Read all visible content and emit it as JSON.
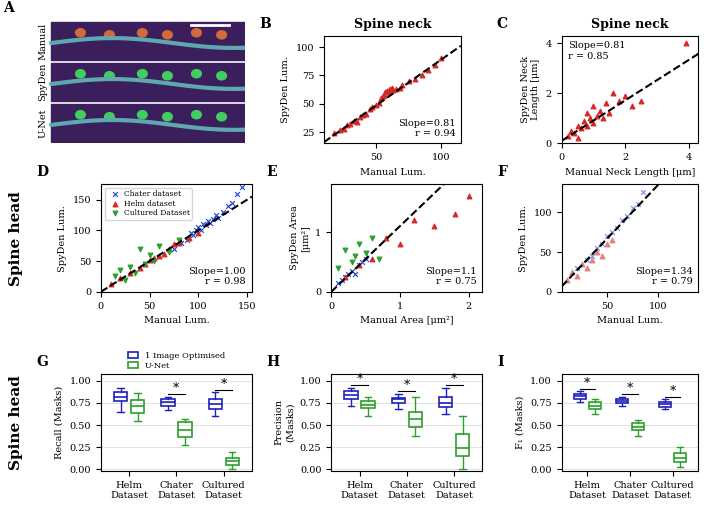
{
  "chart_data": [
    {
      "type": "image",
      "panel": "A",
      "row_labels": [
        "Manual",
        "SpyDen",
        "U-Net"
      ]
    },
    {
      "type": "scatter",
      "panel": "B",
      "title": "Spine neck",
      "x_label": "Manual Lum.",
      "y_label": "SpyDen Lum.",
      "xlim": [
        10,
        115
      ],
      "ylim": [
        15,
        110
      ],
      "xticks": [
        50,
        100
      ],
      "yticks": [
        25,
        50,
        75,
        100
      ],
      "fit_line": {
        "slope": 0.81,
        "intercept": 8
      },
      "annotations": [
        "Slope=0.81",
        "r = 0.94"
      ],
      "series": [
        {
          "color": "#d62728",
          "marker": "^",
          "x": [
            18,
            22,
            25,
            28,
            30,
            33,
            35,
            38,
            40,
            42,
            45,
            47,
            50,
            52,
            54,
            55,
            56,
            57,
            58,
            59,
            60,
            61,
            62,
            63,
            65,
            68,
            70,
            75,
            80,
            85,
            90,
            95,
            100
          ],
          "y": [
            24,
            27,
            28,
            31,
            32,
            35,
            34,
            38,
            40,
            41,
            45,
            47,
            49,
            51,
            55,
            57,
            58,
            60,
            61,
            60,
            62,
            63,
            64,
            62,
            63,
            64,
            67,
            70,
            72,
            75,
            80,
            84,
            90
          ]
        }
      ]
    },
    {
      "type": "scatter",
      "panel": "C",
      "title": "Spine neck",
      "x_label": "Manual Neck Length [μm]",
      "y_label": "SpyDen Neck\nLength [μm]",
      "xlim": [
        0,
        4.3
      ],
      "ylim": [
        0,
        4.3
      ],
      "xticks": [
        0,
        2,
        4
      ],
      "yticks": [
        0,
        2,
        4
      ],
      "fit_line": {
        "slope": 0.81,
        "intercept": 0.1
      },
      "annotations": [
        "Slope=0.81",
        "r = 0.85"
      ],
      "series": [
        {
          "color": "#d62728",
          "marker": "^",
          "x": [
            0.2,
            0.3,
            0.4,
            0.5,
            0.5,
            0.6,
            0.7,
            0.8,
            0.8,
            0.9,
            1.0,
            1.0,
            1.1,
            1.2,
            1.3,
            1.4,
            1.5,
            1.6,
            1.8,
            2.0,
            2.2,
            2.5,
            3.9
          ],
          "y": [
            0.3,
            0.5,
            0.4,
            0.7,
            0.2,
            0.6,
            0.9,
            0.7,
            1.2,
            1.0,
            0.8,
            1.5,
            1.1,
            1.3,
            1.0,
            1.6,
            1.2,
            2.0,
            1.7,
            1.9,
            1.5,
            1.7,
            4.0
          ]
        }
      ]
    },
    {
      "type": "scatter",
      "panel": "D",
      "row_label": "Spine head",
      "x_label": "Manual Lum.",
      "y_label": "SpyDen Lum.",
      "xlim": [
        0,
        155
      ],
      "ylim": [
        0,
        175
      ],
      "xticks": [
        0,
        50,
        100,
        150
      ],
      "yticks": [
        0,
        50,
        100,
        150
      ],
      "fit_line": {
        "slope": 1.0,
        "intercept": 0
      },
      "annotations": [
        "Slope=1.00",
        "r = 0.98"
      ],
      "legend": "upper left",
      "series": [
        {
          "name": "Chater dataset",
          "color": "#1f3fd6",
          "marker": "x",
          "x": [
            75,
            82,
            88,
            92,
            95,
            98,
            100,
            103,
            105,
            108,
            110,
            112,
            115,
            118,
            120,
            125,
            130,
            135,
            140,
            145
          ],
          "y": [
            70,
            80,
            85,
            95,
            92,
            100,
            105,
            100,
            110,
            108,
            115,
            112,
            118,
            125,
            120,
            130,
            140,
            145,
            160,
            170
          ]
        },
        {
          "name": "Helm dataset",
          "color": "#d62728",
          "marker": "^",
          "x": [
            10,
            20,
            30,
            40,
            45,
            50,
            55,
            60,
            65,
            70,
            75,
            80,
            90,
            100
          ],
          "y": [
            12,
            22,
            30,
            38,
            45,
            52,
            55,
            58,
            62,
            70,
            78,
            80,
            88,
            95
          ]
        },
        {
          "name": "Cultured Dataset",
          "color": "#2ca02c",
          "marker": "v",
          "x": [
            15,
            20,
            25,
            30,
            35,
            40,
            45,
            50,
            55,
            60,
            70,
            80
          ],
          "y": [
            25,
            35,
            20,
            40,
            30,
            70,
            45,
            60,
            50,
            75,
            65,
            85
          ]
        }
      ]
    },
    {
      "type": "scatter",
      "panel": "E",
      "x_label": "Manual Area [μm²]",
      "y_label": "SpyDen Area\n[μm²]",
      "xlim": [
        0,
        2.2
      ],
      "ylim": [
        0,
        1.8
      ],
      "xticks": [
        0,
        1,
        2
      ],
      "yticks": [
        0,
        1
      ],
      "fit_line": {
        "slope": 1.1,
        "intercept": 0
      },
      "annotations": [
        "Slope=1.1",
        "r = 0.75"
      ],
      "series": [
        {
          "color": "#1f3fd6",
          "marker": "x",
          "x": [
            0.1,
            0.15,
            0.2,
            0.25,
            0.3,
            0.35,
            0.4,
            0.45,
            0.5
          ],
          "y": [
            0.15,
            0.2,
            0.25,
            0.3,
            0.35,
            0.3,
            0.45,
            0.5,
            0.55
          ]
        },
        {
          "color": "#d62728",
          "marker": "^",
          "x": [
            0.2,
            0.4,
            0.6,
            0.8,
            1.0,
            1.2,
            1.5,
            1.8,
            2.0
          ],
          "y": [
            0.25,
            0.45,
            0.55,
            0.9,
            0.8,
            1.2,
            1.1,
            1.3,
            1.6
          ]
        },
        {
          "color": "#2ca02c",
          "marker": "v",
          "x": [
            0.1,
            0.2,
            0.3,
            0.35,
            0.4,
            0.5,
            0.6,
            0.7
          ],
          "y": [
            0.4,
            0.7,
            0.5,
            0.6,
            0.8,
            0.65,
            0.9,
            0.55
          ]
        }
      ]
    },
    {
      "type": "scatter",
      "panel": "F",
      "x_label": "Manual Lum.",
      "y_label": "SpyDen Lum.",
      "xlim": [
        5,
        140
      ],
      "ylim": [
        0,
        135
      ],
      "xticks": [
        50,
        100
      ],
      "yticks": [
        0,
        50,
        100
      ],
      "fit_line": {
        "slope": 1.34,
        "intercept": 0
      },
      "annotations": [
        "Slope=1.34",
        "r = 0.79"
      ],
      "series": [
        {
          "color": "#6f8fe0",
          "marker": "x",
          "x": [
            20,
            30,
            35,
            40,
            45,
            50,
            55,
            60,
            65,
            70,
            75,
            80,
            85
          ],
          "y": [
            30,
            40,
            45,
            55,
            60,
            70,
            75,
            80,
            90,
            95,
            105,
            110,
            125
          ]
        },
        {
          "color": "#e08080",
          "marker": "^",
          "x": [
            10,
            15,
            20,
            25,
            30,
            35,
            40,
            45,
            50,
            55
          ],
          "y": [
            15,
            25,
            20,
            35,
            30,
            40,
            50,
            45,
            60,
            65
          ]
        }
      ]
    },
    {
      "type": "box",
      "panel": "G",
      "row_label": "Spine head",
      "y_label": "Recall (Masks)",
      "categories": [
        "Helm\nDataset",
        "Chater\nDataset",
        "Cultured\nDataset"
      ],
      "ylim": [
        -0.02,
        1.08
      ],
      "yticks": [
        {
          "value": 0,
          "label": "0.00"
        },
        {
          "value": 0.25,
          "label": "0.25"
        },
        {
          "value": 0.5,
          "label": "0.50"
        },
        {
          "value": 0.75,
          "label": "0.75"
        },
        {
          "value": 1.0,
          "label": "1.00"
        }
      ],
      "legend": "upper center",
      "significance": [
        null,
        "*",
        "*"
      ],
      "series": [
        {
          "name": "1 Image Optimised",
          "color": "#1f1fbf",
          "boxes": [
            {
              "med": 0.82,
              "q1": 0.77,
              "q3": 0.87,
              "whislo": 0.65,
              "whishi": 0.92
            },
            {
              "med": 0.76,
              "q1": 0.72,
              "q3": 0.79,
              "whislo": 0.67,
              "whishi": 0.82
            },
            {
              "med": 0.74,
              "q1": 0.68,
              "q3": 0.8,
              "whislo": 0.6,
              "whishi": 0.87
            }
          ]
        },
        {
          "name": "U-Net",
          "color": "#2ca02c",
          "boxes": [
            {
              "med": 0.72,
              "q1": 0.64,
              "q3": 0.78,
              "whislo": 0.55,
              "whishi": 0.86
            },
            {
              "med": 0.44,
              "q1": 0.36,
              "q3": 0.53,
              "whislo": 0.27,
              "whishi": 0.57
            },
            {
              "med": 0.09,
              "q1": 0.05,
              "q3": 0.13,
              "whislo": 0.0,
              "whishi": 0.2
            }
          ]
        }
      ]
    },
    {
      "type": "box",
      "panel": "H",
      "y_label": "Precision\n(Masks)",
      "categories": [
        "Helm\nDataset",
        "Chater\nDataset",
        "Cultured\nDataset"
      ],
      "ylim": [
        -0.02,
        1.08
      ],
      "yticks": [
        {
          "value": 0,
          "label": "0.00"
        },
        {
          "value": 0.25,
          "label": "0.25"
        },
        {
          "value": 0.5,
          "label": "0.50"
        },
        {
          "value": 0.75,
          "label": "0.75"
        },
        {
          "value": 1.0,
          "label": "1.00"
        }
      ],
      "significance": [
        "*",
        "*",
        "*"
      ],
      "series": [
        {
          "name": "1 Image Optimised",
          "color": "#1f1fbf",
          "boxes": [
            {
              "med": 0.84,
              "q1": 0.8,
              "q3": 0.88,
              "whislo": 0.72,
              "whishi": 0.92
            },
            {
              "med": 0.79,
              "q1": 0.75,
              "q3": 0.81,
              "whislo": 0.68,
              "whishi": 0.85
            },
            {
              "med": 0.75,
              "q1": 0.7,
              "q3": 0.82,
              "whislo": 0.63,
              "whishi": 0.92
            }
          ]
        },
        {
          "name": "U-Net",
          "color": "#2ca02c",
          "boxes": [
            {
              "med": 0.73,
              "q1": 0.69,
              "q3": 0.77,
              "whislo": 0.6,
              "whishi": 0.82
            },
            {
              "med": 0.57,
              "q1": 0.48,
              "q3": 0.65,
              "whislo": 0.38,
              "whishi": 0.82
            },
            {
              "med": 0.24,
              "q1": 0.15,
              "q3": 0.4,
              "whislo": 0.0,
              "whishi": 0.6
            }
          ]
        }
      ]
    },
    {
      "type": "box",
      "panel": "I",
      "y_label": "F₁ (Masks)",
      "categories": [
        "Helm\nDataset",
        "Chater\nDataset",
        "Cultured\nDataset"
      ],
      "ylim": [
        -0.02,
        1.08
      ],
      "yticks": [
        {
          "value": 0,
          "label": "0.00"
        },
        {
          "value": 0.25,
          "label": "0.25"
        },
        {
          "value": 0.5,
          "label": "0.50"
        },
        {
          "value": 0.75,
          "label": "0.75"
        },
        {
          "value": 1.0,
          "label": "1.00"
        }
      ],
      "significance": [
        "*",
        "*",
        "*"
      ],
      "series": [
        {
          "name": "1 Image Optimised",
          "color": "#1f1fbf",
          "boxes": [
            {
              "med": 0.83,
              "q1": 0.8,
              "q3": 0.85,
              "whislo": 0.76,
              "whishi": 0.88
            },
            {
              "med": 0.77,
              "q1": 0.75,
              "q3": 0.79,
              "whislo": 0.72,
              "whishi": 0.82
            },
            {
              "med": 0.74,
              "q1": 0.7,
              "q3": 0.76,
              "whislo": 0.68,
              "whishi": 0.79
            }
          ]
        },
        {
          "name": "U-Net",
          "color": "#2ca02c",
          "boxes": [
            {
              "med": 0.72,
              "q1": 0.68,
              "q3": 0.76,
              "whislo": 0.62,
              "whishi": 0.8
            },
            {
              "med": 0.48,
              "q1": 0.44,
              "q3": 0.52,
              "whislo": 0.38,
              "whishi": 0.56
            },
            {
              "med": 0.13,
              "q1": 0.08,
              "q3": 0.18,
              "whislo": 0.03,
              "whishi": 0.25
            }
          ]
        }
      ]
    }
  ]
}
